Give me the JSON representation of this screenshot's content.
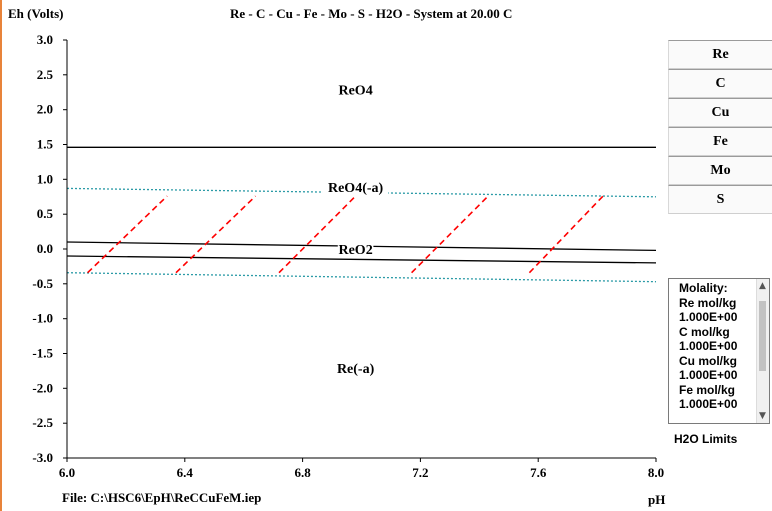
{
  "header": {
    "ylabel": "Eh (Volts)",
    "title": "Re - C - Cu - Fe - Mo - S - H2O - System at 20.00 C"
  },
  "footer": {
    "file": "File: C:\\HSC6\\EpH\\ReCCuFeM.iep",
    "xlabel": "pH"
  },
  "buttons": [
    "Re",
    "C",
    "Cu",
    "Fe",
    "Mo",
    "S"
  ],
  "molality": {
    "lines": [
      "Molality:",
      "Re mol/kg",
      "1.000E+00",
      "C mol/kg",
      "1.000E+00",
      "Cu mol/kg",
      "1.000E+00",
      "Fe mol/kg",
      "1.000E+00"
    ]
  },
  "h2o_limits": "H2O Limits",
  "colors": {
    "boundary": "#000000",
    "water_limit": "#2a9aa6",
    "annotation": "#ff0000",
    "side_strip": "#e8833a"
  },
  "chart_data": {
    "type": "line",
    "xlabel": "pH",
    "ylabel": "Eh (Volts)",
    "title": "Re - C - Cu - Fe - Mo - S - H2O - System at 20.00 C",
    "xlim": [
      6.0,
      8.0
    ],
    "ylim": [
      -3.0,
      3.0
    ],
    "x_ticks": [
      "6.0",
      "6.4",
      "6.8",
      "7.2",
      "7.6",
      "8.0"
    ],
    "y_ticks": [
      "3.0",
      "2.5",
      "2.0",
      "1.5",
      "1.0",
      "0.5",
      "0.0",
      "-0.5",
      "-1.0",
      "-1.5",
      "-2.0",
      "-2.5",
      "-3.0"
    ],
    "grid": false,
    "regions": [
      {
        "label": "ReO4",
        "x": 6.98,
        "y": 2.22
      },
      {
        "label": "ReO4(-a)",
        "x": 6.98,
        "y": 0.82
      },
      {
        "label": "ReO2",
        "x": 6.98,
        "y": -0.07
      },
      {
        "label": "Re(-a)",
        "x": 6.98,
        "y": -1.78
      }
    ],
    "series": [
      {
        "style": "solid",
        "x": [
          6.0,
          8.0
        ],
        "y": [
          1.46,
          1.46
        ]
      },
      {
        "style": "solid",
        "x": [
          6.0,
          8.0
        ],
        "y": [
          0.1,
          -0.02
        ]
      },
      {
        "style": "solid",
        "x": [
          6.0,
          8.0
        ],
        "y": [
          -0.1,
          -0.2
        ]
      },
      {
        "style": "water-dotted",
        "x": [
          6.0,
          8.0
        ],
        "y": [
          0.87,
          0.75
        ]
      },
      {
        "style": "water-dotted",
        "x": [
          6.0,
          8.0
        ],
        "y": [
          -0.34,
          -0.47
        ]
      },
      {
        "style": "red-dashed",
        "x": [
          6.07,
          6.34
        ],
        "y": [
          -0.34,
          0.76
        ]
      },
      {
        "style": "red-dashed",
        "x": [
          6.37,
          6.64
        ],
        "y": [
          -0.34,
          0.76
        ]
      },
      {
        "style": "red-dashed",
        "x": [
          6.72,
          6.98
        ],
        "y": [
          -0.34,
          0.76
        ]
      },
      {
        "style": "red-dashed",
        "x": [
          7.17,
          7.43
        ],
        "y": [
          -0.34,
          0.76
        ]
      },
      {
        "style": "red-dashed",
        "x": [
          7.57,
          7.82
        ],
        "y": [
          -0.34,
          0.76
        ]
      }
    ]
  }
}
